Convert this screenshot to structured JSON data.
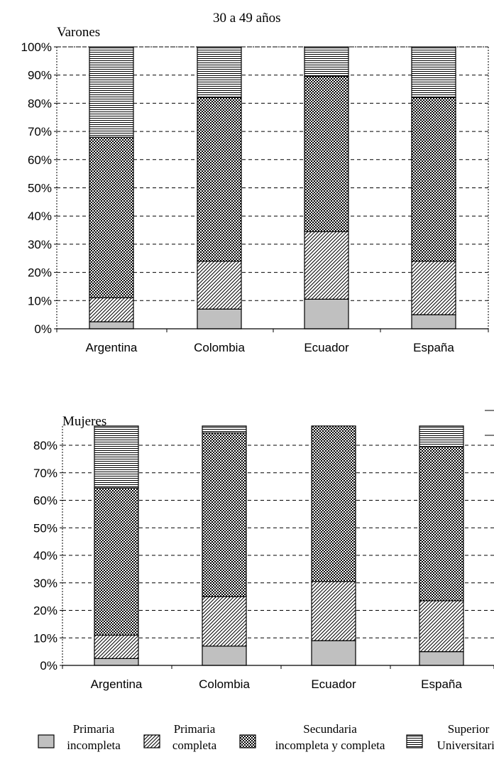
{
  "page_title": "30 a 49 años",
  "colors": {
    "primaria_incompleta": "#c0c0c0",
    "bar_stroke": "#000000",
    "grid": "#000000",
    "background": "#ffffff"
  },
  "legend": [
    {
      "label_line1": "Primaria",
      "label_line2": "incompleta",
      "pattern": "solid-gray"
    },
    {
      "label_line1": "Primaria",
      "label_line2": "completa",
      "pattern": "diagonal-hatch"
    },
    {
      "label_line1": "Secundaria",
      "label_line2": "incompleta y completa",
      "pattern": "dense-checker"
    },
    {
      "label_line1": "Superior",
      "label_line2": "Universitaria",
      "pattern": "horizontal-lines"
    }
  ],
  "chart_data": [
    {
      "type": "bar",
      "stacked": true,
      "title": "Varones",
      "categories": [
        "Argentina",
        "Colombia",
        "Ecuador",
        "España"
      ],
      "ylim": [
        0,
        100
      ],
      "yticks": [
        "0%",
        "10%",
        "20%",
        "30%",
        "40%",
        "50%",
        "60%",
        "70%",
        "80%",
        "90%",
        "100%"
      ],
      "grid": true,
      "series": [
        {
          "name": "Primaria incompleta",
          "values": [
            2.5,
            7,
            10.5,
            5
          ]
        },
        {
          "name": "Primaria completa",
          "values": [
            8.5,
            17,
            24,
            19
          ]
        },
        {
          "name": "Secundaria incompleta y completa",
          "values": [
            57,
            58,
            55,
            58
          ]
        },
        {
          "name": "Superior Universitaria",
          "values": [
            32,
            18,
            10.5,
            18
          ]
        }
      ]
    },
    {
      "type": "bar",
      "stacked": true,
      "title": "Mujeres",
      "categories": [
        "Argentina",
        "Colombia",
        "Ecuador",
        "España"
      ],
      "ylim": [
        0,
        87
      ],
      "yticks": [
        "0%",
        "10%",
        "20%",
        "30%",
        "40%",
        "50%",
        "60%",
        "70%",
        "80%"
      ],
      "grid": true,
      "series": [
        {
          "name": "Primaria incompleta",
          "values": [
            2.5,
            7,
            9,
            5
          ]
        },
        {
          "name": "Primaria completa",
          "values": [
            8.5,
            18,
            21.5,
            18.5
          ]
        },
        {
          "name": "Secundaria incompleta y completa",
          "values": [
            53.5,
            59.5,
            56.5,
            56
          ]
        },
        {
          "name": "Superior Universitaria",
          "values": [
            22.5,
            2.5,
            0,
            7.5
          ]
        }
      ]
    }
  ]
}
